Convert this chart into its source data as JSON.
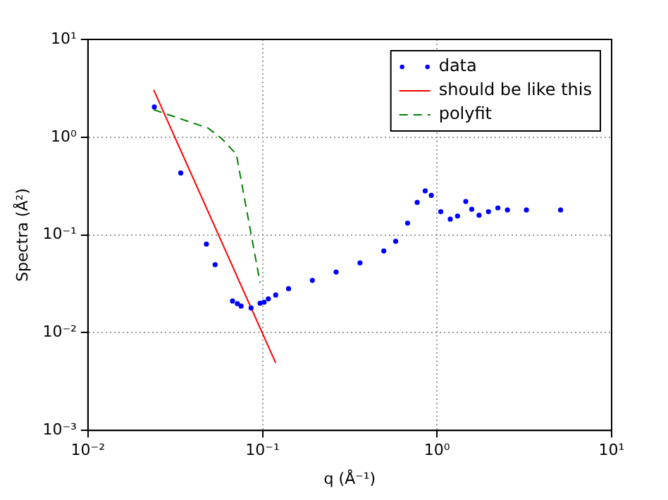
{
  "chart_data": {
    "type": "scatter",
    "xlabel": "q (Å⁻¹)",
    "ylabel": "Spectra (Å²)",
    "log": "xy",
    "grid": true,
    "legend": "top right",
    "xlim": [
      0.01,
      10
    ],
    "ylim": [
      0.001,
      10
    ],
    "xticks": [
      {
        "value": 0.01,
        "label": "10⁻²"
      },
      {
        "value": 0.1,
        "label": "10⁻¹"
      },
      {
        "value": 1,
        "label": "10⁰"
      },
      {
        "value": 10,
        "label": "10¹"
      }
    ],
    "yticks": [
      {
        "value": 0.001,
        "label": "10⁻³"
      },
      {
        "value": 0.01,
        "label": "10⁻²"
      },
      {
        "value": 0.1,
        "label": "10⁻¹"
      },
      {
        "value": 1,
        "label": "10⁰"
      },
      {
        "value": 10,
        "label": "10¹"
      }
    ],
    "series": [
      {
        "name": "data",
        "marker": "circle",
        "color": "#0000ff",
        "x": [
          0.024,
          0.034,
          0.0477,
          0.0535,
          0.0673,
          0.0718,
          0.0754,
          0.086,
          0.0968,
          0.102,
          0.108,
          0.119,
          0.141,
          0.193,
          0.264,
          0.362,
          0.495,
          0.579,
          0.678,
          0.769,
          0.855,
          0.927,
          1.05,
          1.19,
          1.31,
          1.46,
          1.58,
          1.74,
          1.97,
          2.23,
          2.53,
          3.25,
          5.1
        ],
        "values": [
          2.04,
          0.43,
          0.0805,
          0.0496,
          0.0211,
          0.0198,
          0.0187,
          0.0179,
          0.02,
          0.0205,
          0.0222,
          0.0243,
          0.0282,
          0.0343,
          0.0417,
          0.0518,
          0.0686,
          0.086,
          0.132,
          0.215,
          0.282,
          0.254,
          0.173,
          0.145,
          0.156,
          0.22,
          0.183,
          0.159,
          0.173,
          0.189,
          0.18,
          0.18,
          0.18
        ]
      },
      {
        "name": "should be like this",
        "type": "line",
        "line_style": "solid",
        "marker": "none",
        "color": "#ff0000",
        "x": [
          0.0238,
          0.119
        ],
        "values": [
          3.05,
          0.0049
        ]
      },
      {
        "name": "polyfit",
        "type": "line",
        "line_style": "dashed",
        "marker": "none",
        "color": "#008000",
        "x": [
          0.0238,
          0.0487,
          0.0586,
          0.0708,
          0.0968
        ],
        "values": [
          1.91,
          1.24,
          0.96,
          0.67,
          0.0325
        ]
      }
    ]
  }
}
